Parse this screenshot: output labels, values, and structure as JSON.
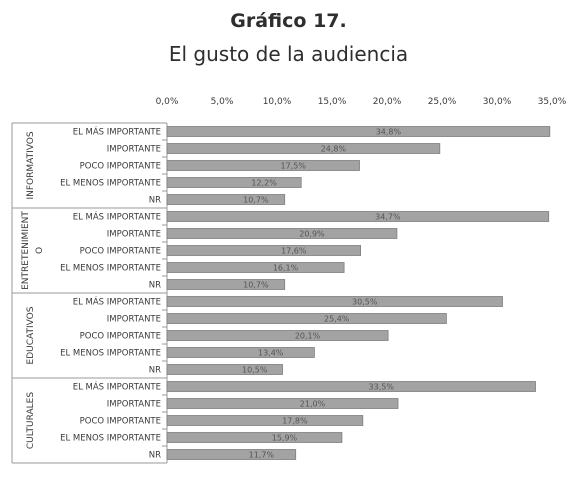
{
  "title": "Gráfico 17.",
  "subtitle": "El gusto de la audiencia",
  "colors": {
    "bar": "#a3a3a3",
    "bar_edge": "#7e7e7e",
    "axis": "#9a9a9a",
    "text": "#3a3a3a"
  },
  "chart_data": {
    "type": "bar",
    "orientation": "horizontal",
    "xlim": [
      0,
      35
    ],
    "tick_labels": [
      "0,0%",
      "5,0%",
      "10,0%",
      "15,0%",
      "20,0%",
      "25,0%",
      "30,0%",
      "35,0%"
    ],
    "grid": false,
    "groups": [
      {
        "name": "INFORMATIVOS",
        "categories": [
          "EL MÁS IMPORTANTE",
          "IMPORTANTE",
          "POCO IMPORTANTE",
          "EL MENOS IMPORTANTE",
          "NR"
        ],
        "values": [
          34.8,
          24.8,
          17.5,
          12.2,
          10.7
        ],
        "value_labels": [
          "34,8%",
          "24,8%",
          "17,5%",
          "12,2%",
          "10,7%"
        ]
      },
      {
        "name": "ENTRETENIMIENT O",
        "categories": [
          "EL MÁS IMPORTANTE",
          "IMPORTANTE",
          "POCO IMPORTANTE",
          "EL MENOS IMPORTANTE",
          "NR"
        ],
        "values": [
          34.7,
          20.9,
          17.6,
          16.1,
          10.7
        ],
        "value_labels": [
          "34,7%",
          "20,9%",
          "17,6%",
          "16,1%",
          "10,7%"
        ]
      },
      {
        "name": "EDUCATIVOS",
        "categories": [
          "EL MÁS IMPORTANTE",
          "IMPORTANTE",
          "POCO IMPORTANTE",
          "EL MENOS IMPORTANTE",
          "NR"
        ],
        "values": [
          30.5,
          25.4,
          20.1,
          13.4,
          10.5
        ],
        "value_labels": [
          "30,5%",
          "25,4%",
          "20,1%",
          "13,4%",
          "10,5%"
        ]
      },
      {
        "name": "CULTURALES",
        "categories": [
          "EL MÁS IMPORTANTE",
          "IMPORTANTE",
          "POCO IMPORTANTE",
          "EL MENOS IMPORTANTE",
          "NR"
        ],
        "values": [
          33.5,
          21.0,
          17.8,
          15.9,
          11.7
        ],
        "value_labels": [
          "33,5%",
          "21,0%",
          "17,8%",
          "15,9%",
          "11,7%"
        ]
      }
    ]
  }
}
